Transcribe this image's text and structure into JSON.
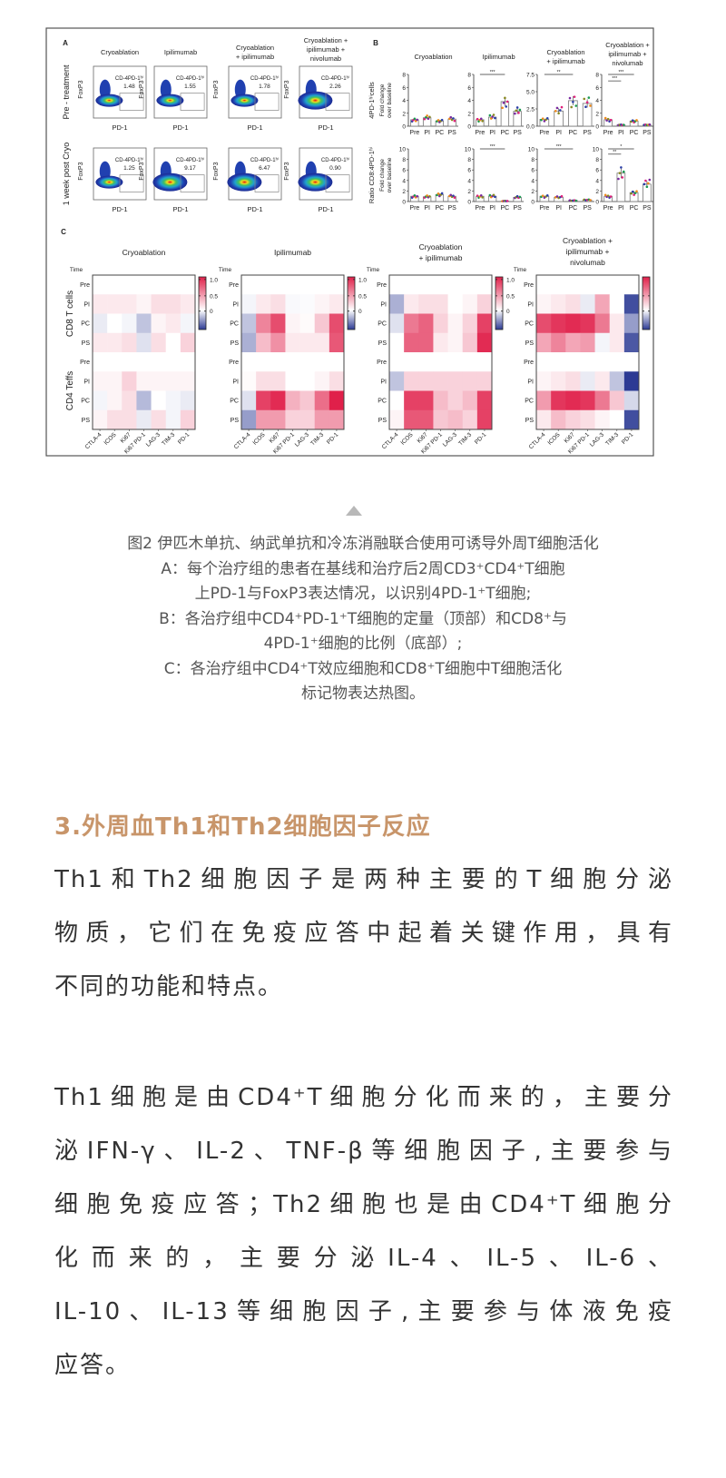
{
  "figure": {
    "panel_a": {
      "label": "A",
      "columns": [
        [
          "Cryoablation"
        ],
        [
          "Ipilimumab"
        ],
        [
          "Cryoablation",
          "+ ipilimumab"
        ],
        [
          "Cryoablation +",
          "ipilimumab +",
          "nivolumab"
        ]
      ],
      "rows": [
        "Pre - treatment",
        "1 week post Cryo"
      ],
      "x_label": "PD-1",
      "y_label": "FoxP3",
      "gate_label": "CD-4PD-1ʰⁱ",
      "values": [
        [
          "1.48",
          "1.55",
          "1.78",
          "2.26"
        ],
        [
          "1.25",
          "9.17",
          "6.47",
          "0.90"
        ]
      ]
    },
    "panel_b": {
      "label": "B",
      "columns": [
        [
          "Cryoablation"
        ],
        [
          "Ipilimumab"
        ],
        [
          "Cryoablation",
          "+ ipilimumab"
        ],
        [
          "Cryoablation +",
          "ipilimumab +",
          "nivolumab"
        ]
      ],
      "categories": [
        "Pre",
        "PI",
        "PC",
        "PS"
      ],
      "y_label_main": [
        "4PD-1ʰⁱcells",
        "Ratio CD8:4PD-1ʰⁱ"
      ],
      "y_label_sub": [
        "Fold change",
        "over baseline"
      ],
      "rows": [
        {
          "ylim": [
            [
              0,
              8
            ],
            [
              0,
              8
            ],
            [
              0,
              7.5
            ],
            [
              0,
              8
            ]
          ],
          "yticks": [
            [
              "0",
              "2",
              "4",
              "6",
              "8"
            ],
            [
              "0",
              "2",
              "4",
              "6",
              "8"
            ],
            [
              "0.0",
              "2.5",
              "5.0",
              "7.5"
            ],
            [
              "0",
              "2",
              "4",
              "6",
              "8"
            ]
          ],
          "values": [
            [
              1,
              1.3,
              0.8,
              1.1
            ],
            [
              1,
              1.4,
              3.8,
              2.3
            ],
            [
              1,
              2.2,
              3.7,
              3.3
            ],
            [
              1,
              0.2,
              0.8,
              0.2
            ]
          ],
          "sig": [
            [],
            [
              {
                "from": 0,
                "to": 2,
                "label": "***",
                "level": 8
              }
            ],
            [
              {
                "from": 0,
                "to": 2,
                "label": "**",
                "level": 7.5
              }
            ],
            [
              {
                "from": 0,
                "to": 2,
                "label": "***",
                "level": 8
              },
              {
                "from": 0,
                "to": 1,
                "label": "***",
                "level": 7
              }
            ]
          ]
        },
        {
          "ylim": [
            [
              0,
              10
            ],
            [
              0,
              10
            ],
            [
              0,
              10
            ],
            [
              0,
              10
            ]
          ],
          "yticks": [
            [
              "0",
              "2",
              "4",
              "6",
              "8",
              "10"
            ],
            [
              "0",
              "2",
              "4",
              "6",
              "8",
              "10"
            ],
            [
              "0",
              "2",
              "4",
              "6",
              "8",
              "10"
            ],
            [
              "0",
              "2",
              "4",
              "6",
              "8",
              "10"
            ]
          ],
          "values": [
            [
              1,
              0.9,
              1.3,
              1
            ],
            [
              1,
              1,
              0.1,
              0.8
            ],
            [
              1,
              0.8,
              0.2,
              0.3
            ],
            [
              1,
              5.4,
              1.7,
              3.3
            ]
          ],
          "sig": [
            [],
            [
              {
                "from": 0,
                "to": 2,
                "label": "***",
                "level": 10
              }
            ],
            [
              {
                "from": 0,
                "to": 2,
                "label": "***",
                "level": 10
              }
            ],
            [
              {
                "from": 0,
                "to": 2,
                "label": "*",
                "level": 10
              },
              {
                "from": 0,
                "to": 1,
                "label": "**",
                "level": 9
              }
            ]
          ]
        }
      ],
      "dot_colors": [
        "#2b3fa8",
        "#e0207a",
        "#1a9a50",
        "#f08a1a",
        "#7a2aa0",
        "#888820"
      ]
    },
    "panel_c": {
      "label": "C",
      "titles": [
        [
          "Cryoablation"
        ],
        [
          "Ipilimumab"
        ],
        [
          "Cryoablation",
          "+ ipilimumab"
        ],
        [
          "Cryoablation +",
          "ipilimumab +",
          "nivolumab"
        ]
      ],
      "time_label": "Time",
      "group_labels": [
        "CD8 T cells",
        "CD4 Teffs"
      ],
      "row_labels": [
        "Pre",
        "PI",
        "PC",
        "PS",
        "Pre",
        "PI",
        "PC",
        "PS"
      ],
      "col_labels": [
        "CTLA-4",
        "ICOS",
        "Ki67",
        "Ki67 PD-1",
        "LAG-3",
        "TIM-3",
        "PD-1"
      ],
      "colorbar_ticks": [
        [
          "1.0",
          "0.5",
          "0"
        ],
        [
          "1.0",
          "0.5",
          "0"
        ],
        [
          "1.0",
          "0.5",
          "0"
        ],
        [
          "0.5",
          "0"
        ]
      ],
      "colors": {
        "positive": "#e0204a",
        "negative": "#2c3a94",
        "zero": "#ffffff"
      },
      "chart_data": [
        {
          "type": "heatmap",
          "values": [
            [
              0,
              0,
              0,
              0,
              0,
              0,
              0
            ],
            [
              0.1,
              0.1,
              0.1,
              0.05,
              0.15,
              0.15,
              0.1
            ],
            [
              -0.1,
              0,
              -0.05,
              -0.3,
              0.05,
              0.1,
              -0.05
            ],
            [
              0.1,
              0.1,
              0.15,
              -0.15,
              0.15,
              0,
              0.2
            ],
            [
              0,
              0,
              0,
              0,
              0,
              0,
              0
            ],
            [
              0.05,
              0.05,
              0.2,
              0.05,
              0.05,
              0.05,
              0.05
            ],
            [
              -0.05,
              0.05,
              0.15,
              -0.35,
              0,
              -0.05,
              -0.1
            ],
            [
              0.05,
              0.15,
              0.15,
              -0.1,
              0.15,
              -0.05,
              0.2
            ]
          ]
        },
        {
          "type": "heatmap",
          "values": [
            [
              0,
              0,
              0,
              0,
              0,
              0,
              0
            ],
            [
              -0.05,
              0.1,
              0.15,
              -0.03,
              -0.02,
              0.05,
              0.1
            ],
            [
              -0.3,
              0.55,
              0.8,
              0.05,
              0.02,
              0.25,
              0.8
            ],
            [
              -0.4,
              0.3,
              0.5,
              0.1,
              0.1,
              0.1,
              0.75
            ],
            [
              0,
              0,
              0,
              0,
              0,
              0,
              0
            ],
            [
              0.02,
              0.15,
              0.15,
              0,
              0,
              0.05,
              0.15
            ],
            [
              -0.15,
              0.85,
              0.95,
              0.35,
              0.25,
              0.65,
              1
            ],
            [
              -0.5,
              0.45,
              0.45,
              0.2,
              0.2,
              0.45,
              0.45
            ]
          ]
        },
        {
          "type": "heatmap",
          "values": [
            [
              0,
              0,
              0,
              0,
              0,
              0,
              0
            ],
            [
              -0.4,
              0.1,
              0.15,
              0.15,
              0,
              0.05,
              0.2
            ],
            [
              -0.15,
              0.6,
              0.7,
              0.2,
              0.05,
              0.2,
              0.85
            ],
            [
              0,
              0.7,
              0.7,
              0.1,
              0.05,
              0.25,
              0.95
            ],
            [
              0,
              0,
              0,
              0,
              0,
              0,
              0
            ],
            [
              -0.3,
              0.2,
              0.2,
              0.2,
              0.2,
              0.2,
              0.2
            ],
            [
              0,
              0.85,
              0.85,
              0.3,
              0.2,
              0.3,
              0.85
            ],
            [
              0.05,
              0.75,
              0.75,
              0.25,
              0.3,
              0.2,
              0.85
            ]
          ]
        },
        {
          "type": "heatmap",
          "values": [
            [
              0,
              0,
              0,
              0,
              0,
              0,
              0
            ],
            [
              0.05,
              0.1,
              0.15,
              -0.1,
              0.4,
              0,
              -0.9
            ],
            [
              0.8,
              0.9,
              0.95,
              0.9,
              0.6,
              0.1,
              -0.5
            ],
            [
              0.4,
              0.55,
              0.4,
              0.45,
              -0.05,
              0.1,
              -0.85
            ],
            [
              0,
              0,
              0,
              0,
              0,
              0,
              0
            ],
            [
              0.05,
              0.1,
              0.15,
              -0.1,
              0.1,
              -0.3,
              -1
            ],
            [
              0.45,
              0.9,
              0.95,
              0.9,
              0.6,
              0.25,
              -0.2
            ],
            [
              0.1,
              0.3,
              0.2,
              0.15,
              0.05,
              0,
              -0.9
            ]
          ]
        }
      ]
    }
  },
  "caption": [
    "图2  伊匹木单抗、纳武单抗和冷冻消融联合使用可诱导外周T细胞活化",
    "A：每个治疗组的患者在基线和治疗后2周CD3⁺CD4⁺T细胞",
    "上PD-1与FoxP3表达情况，以识别4PD-1⁺T细胞;",
    "B：各治疗组中CD4⁺PD-1⁺T细胞的定量（顶部）和CD8⁺与",
    "4PD-1⁺细胞的比例（底部）;",
    "C：各治疗组中CD4⁺T效应细胞和CD8⁺T细胞中T细胞活化",
    "标记物表达热图。"
  ],
  "heading": "3.外周血Th1和Th2细胞因子反应",
  "paragraphs": [
    [
      "Th1和Th2细胞因子是两种主要的T细胞分泌",
      "物质，它们在免疫应答中起着关键作用，具有",
      "不同的功能和特点。"
    ],
    [
      "Th1细胞是由CD4⁺T细胞分化而来的，主要分",
      "泌IFN-γ、IL-2、TNF-β等细胞因子,主要参与",
      "细胞免疫应答；Th2细胞也是由CD4⁺T细胞分",
      "化而来的，主要分泌IL-4、IL-5、IL-6、",
      "IL-10、IL-13等细胞因子,主要参与体液免疫",
      "应答。"
    ]
  ]
}
